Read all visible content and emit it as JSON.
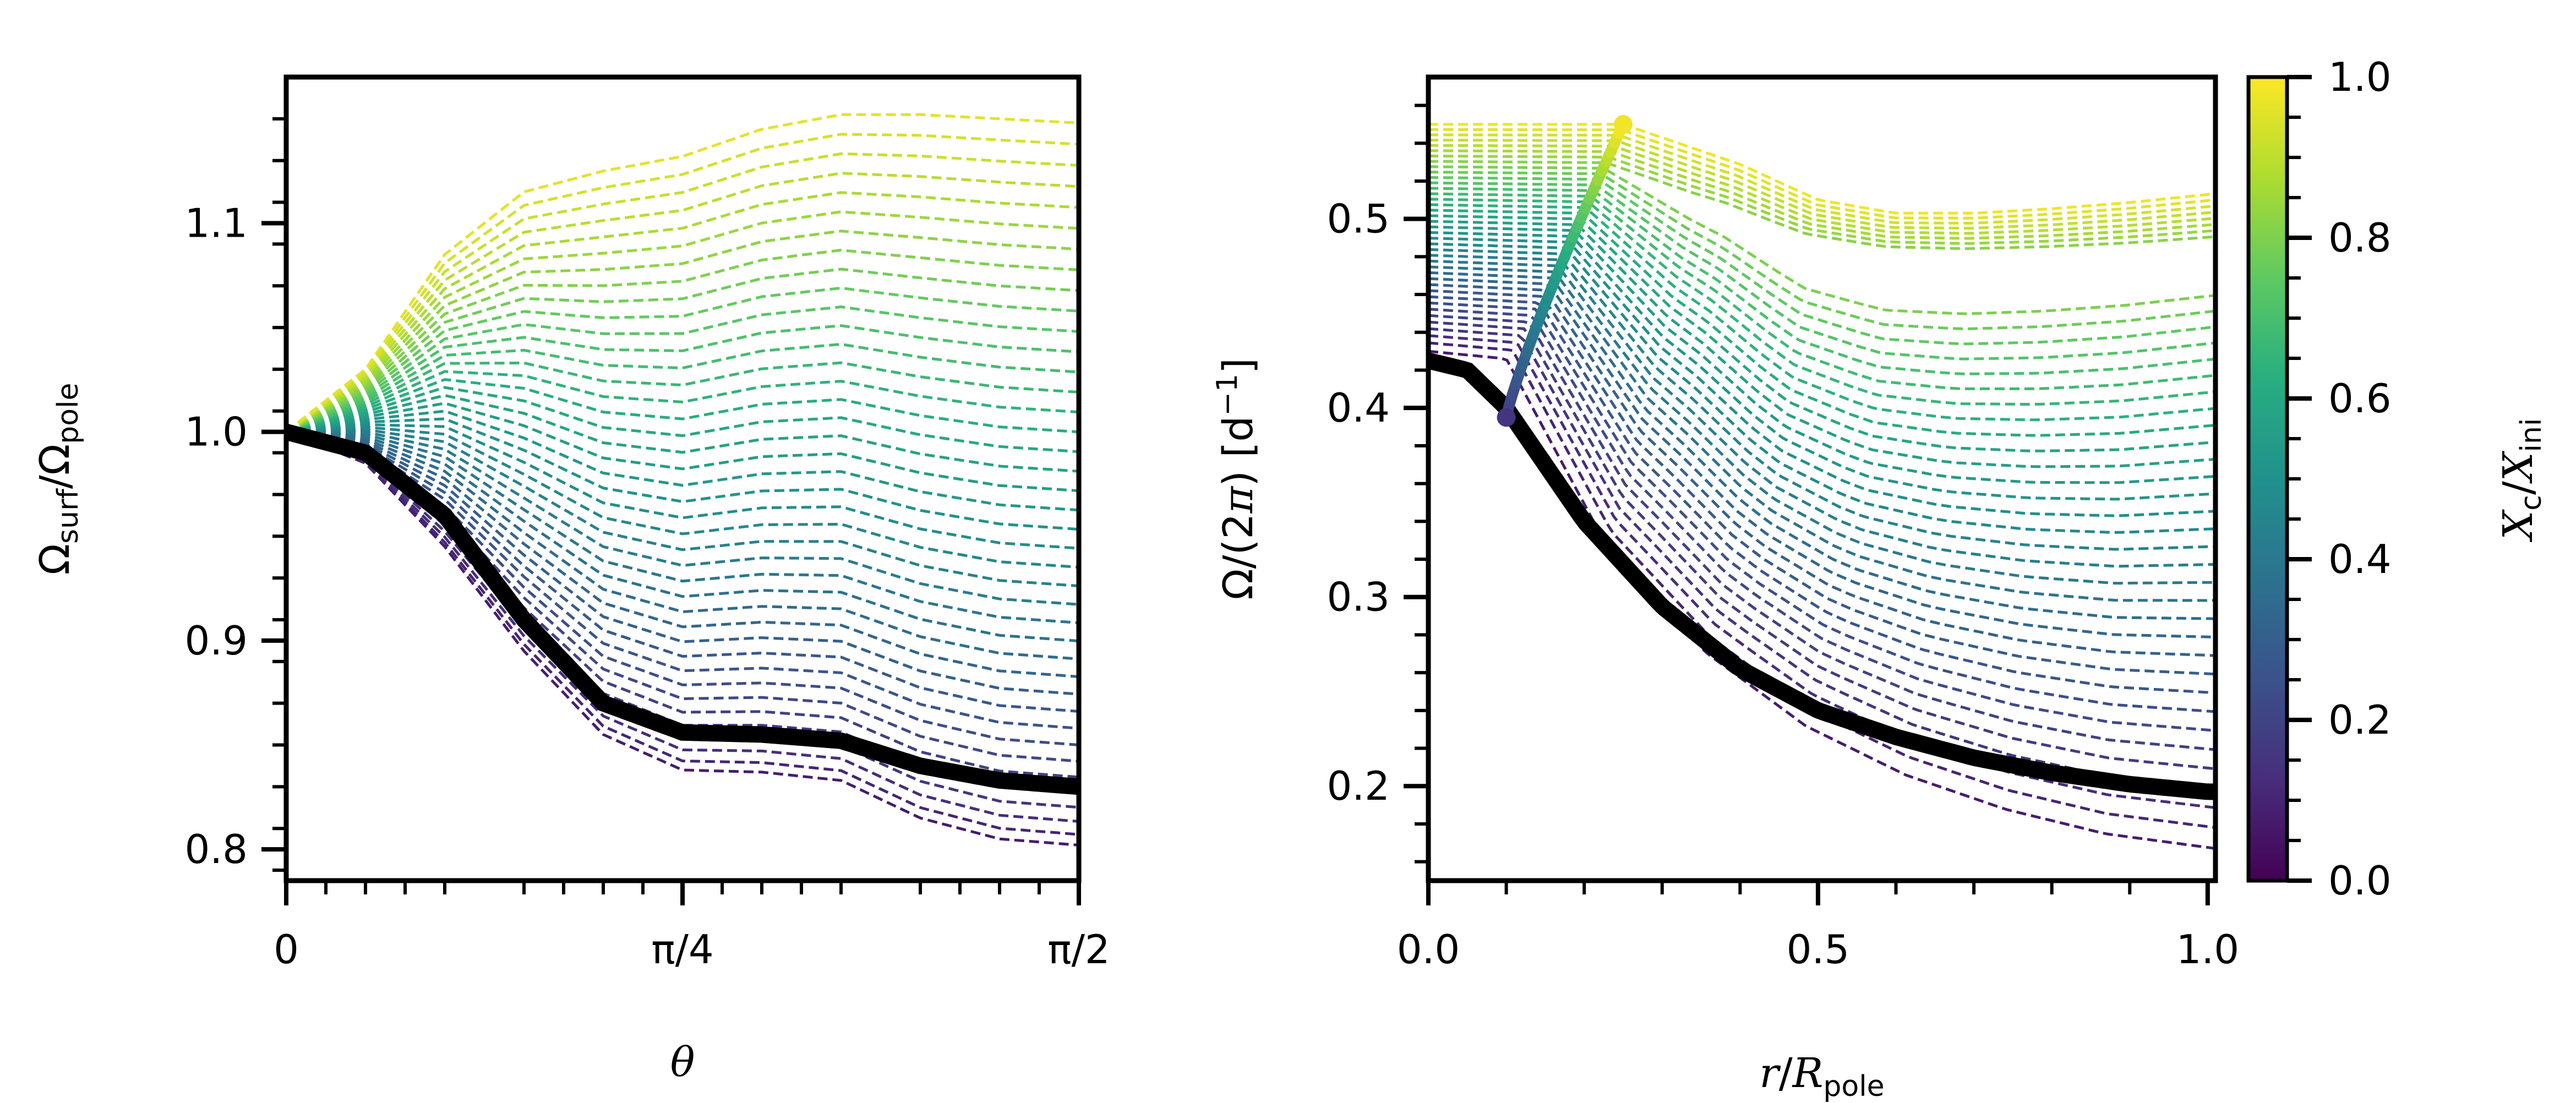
{
  "chart_data": [
    {
      "type": "line",
      "xlabel": "θ",
      "ylabel": "Ω_surf/Ω_pole",
      "xlim": [
        0,
        1.5708
      ],
      "ylim": [
        0.785,
        1.17
      ],
      "x_ticks": [
        {
          "value": 0,
          "label": "0"
        },
        {
          "value": 0.7854,
          "label": "π/4"
        },
        {
          "value": 1.5708,
          "label": "π/2"
        }
      ],
      "y_ticks": [
        {
          "value": 0.8,
          "label": "0.8"
        },
        {
          "value": 0.9,
          "label": "0.9"
        },
        {
          "value": 1.0,
          "label": "1.0"
        },
        {
          "value": 1.1,
          "label": "1.1"
        }
      ],
      "grid": false,
      "colormap": "viridis",
      "family": {
        "style": "dashed",
        "param_range": [
          0.08,
          0.96
        ],
        "count": 40,
        "end_values_at_pi_over_2": [
          0.802,
          1.148
        ],
        "x": [
          0,
          0.1571,
          0.3142,
          0.4712,
          0.6283,
          0.7854,
          0.9425,
          1.0996,
          1.2566,
          1.4137,
          1.5708
        ],
        "low_envelope": [
          1.0,
          0.985,
          0.945,
          0.895,
          0.855,
          0.838,
          0.837,
          0.833,
          0.815,
          0.805,
          0.802
        ],
        "high_envelope": [
          1.0,
          1.03,
          1.085,
          1.115,
          1.125,
          1.132,
          1.145,
          1.152,
          1.152,
          1.15,
          1.148
        ]
      },
      "black_curve": {
        "style": "solid",
        "color": "#000000",
        "x": [
          0,
          0.1571,
          0.3142,
          0.4712,
          0.6283,
          0.7854,
          0.9425,
          1.0996,
          1.2566,
          1.4137,
          1.5708
        ],
        "y": [
          1.0,
          0.99,
          0.96,
          0.91,
          0.87,
          0.856,
          0.855,
          0.852,
          0.84,
          0.833,
          0.83
        ]
      }
    },
    {
      "type": "line",
      "xlabel": "r/R_pole",
      "ylabel": "Ω/(2π) [d⁻¹]",
      "xlim": [
        0,
        1.01
      ],
      "ylim": [
        0.15,
        0.575
      ],
      "x_ticks": [
        {
          "value": 0.0,
          "label": "0.0"
        },
        {
          "value": 0.5,
          "label": "0.5"
        },
        {
          "value": 1.0,
          "label": "1.0"
        }
      ],
      "y_ticks": [
        {
          "value": 0.2,
          "label": "0.2"
        },
        {
          "value": 0.3,
          "label": "0.3"
        },
        {
          "value": 0.4,
          "label": "0.4"
        },
        {
          "value": 0.5,
          "label": "0.5"
        }
      ],
      "grid": false,
      "colormap": "viridis",
      "family": {
        "style": "dashed",
        "param_range": [
          0.08,
          0.98
        ],
        "count": 40,
        "core_values_at_r0": [
          0.43,
          0.55
        ],
        "core_edge_range": [
          0.1,
          0.25
        ],
        "end_values_at_r1": [
          0.167,
          0.515
        ]
      },
      "core_edge_curve": {
        "style": "solid",
        "colored_by": "Xc/Xini",
        "x_range": [
          0.1,
          0.25
        ],
        "y_range": [
          0.395,
          0.55
        ]
      },
      "black_curve": {
        "style": "solid",
        "color": "#000000",
        "x": [
          0,
          0.05,
          0.1,
          0.15,
          0.2,
          0.3,
          0.4,
          0.5,
          0.6,
          0.7,
          0.8,
          0.9,
          1.0
        ],
        "y": [
          0.425,
          0.42,
          0.4,
          0.37,
          0.34,
          0.295,
          0.262,
          0.24,
          0.226,
          0.215,
          0.207,
          0.201,
          0.197
        ]
      }
    }
  ],
  "colorbar": {
    "label": "X_c/X_ini",
    "ticks": [
      {
        "value": 0.0,
        "label": "0.0"
      },
      {
        "value": 0.2,
        "label": "0.2"
      },
      {
        "value": 0.4,
        "label": "0.4"
      },
      {
        "value": 0.6,
        "label": "0.6"
      },
      {
        "value": 0.8,
        "label": "0.8"
      },
      {
        "value": 1.0,
        "label": "1.0"
      }
    ],
    "range": [
      0,
      1
    ],
    "colormap": "viridis"
  },
  "labels": {
    "left_ylabel_main": "Ω",
    "left_ylabel_sub1": "surf",
    "left_ylabel_mid": "/Ω",
    "left_ylabel_sub2": "pole",
    "left_xlabel": "θ",
    "right_ylabel_main": "Ω/(2",
    "right_ylabel_pi": "π",
    "right_ylabel_rest": ") [d",
    "right_ylabel_sup": "−1",
    "right_ylabel_end": "]",
    "right_xlabel_r": "r",
    "right_xlabel_slash": "/",
    "right_xlabel_R": "R",
    "right_xlabel_sub": "pole",
    "cbar_X1": "X",
    "cbar_sub1": "c",
    "cbar_slash": "/",
    "cbar_X2": "X",
    "cbar_sub2": "ini"
  }
}
